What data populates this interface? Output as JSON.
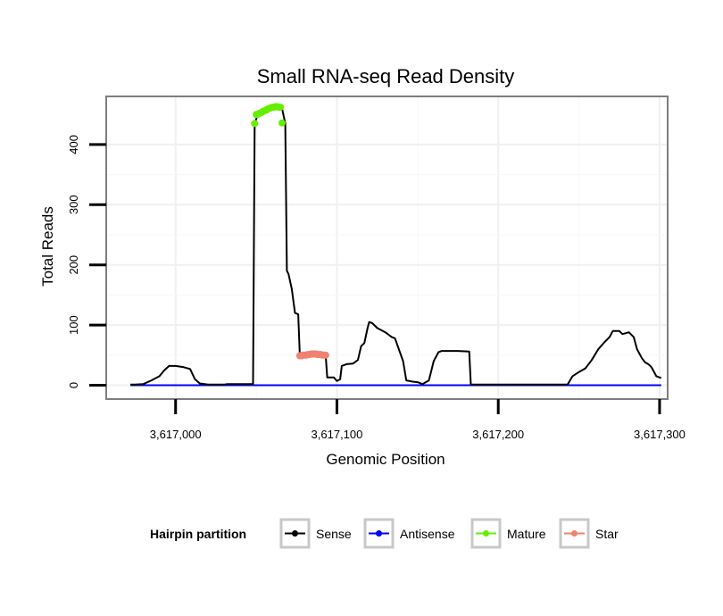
{
  "chart_data": {
    "type": "line",
    "title": "Small RNA-seq Read Density",
    "xlabel": "Genomic Position",
    "ylabel": "Total Reads",
    "xlim": [
      3616957,
      3617305
    ],
    "ylim": [
      -23,
      480
    ],
    "x_ticks": [
      3617000,
      3617100,
      3617200,
      3617300
    ],
    "x_tick_labels": [
      "3,617,000",
      "3,617,100",
      "3,617,200",
      "3,617,300"
    ],
    "y_ticks": [
      0,
      100,
      200,
      300,
      400
    ],
    "y_tick_labels": [
      "0",
      "100",
      "200",
      "300",
      "400"
    ],
    "grid": true,
    "legend": {
      "title": "Hairpin partition",
      "position": "bottom",
      "entries": [
        {
          "name": "Sense",
          "color": "#000000"
        },
        {
          "name": "Antisense",
          "color": "#0000ff"
        },
        {
          "name": "Mature",
          "color": "#66ee00"
        },
        {
          "name": "Star",
          "color": "#f08070"
        }
      ]
    },
    "series": [
      {
        "name": "Sense",
        "color": "#000000",
        "points": [
          [
            3616972,
            1
          ],
          [
            3616975,
            1
          ],
          [
            3616980,
            2
          ],
          [
            3616985,
            8
          ],
          [
            3616990,
            15
          ],
          [
            3616993,
            25
          ],
          [
            3616996,
            32
          ],
          [
            3617000,
            32
          ],
          [
            3617005,
            30
          ],
          [
            3617009,
            27
          ],
          [
            3617012,
            10
          ],
          [
            3617015,
            3
          ],
          [
            3617020,
            1
          ],
          [
            3617030,
            1
          ],
          [
            3617032,
            2
          ],
          [
            3617043,
            2
          ],
          [
            3617048,
            2
          ],
          [
            3617049,
            435
          ],
          [
            3617051,
            450
          ],
          [
            3617055,
            455
          ],
          [
            3617060,
            462
          ],
          [
            3617063,
            463
          ],
          [
            3617066,
            460
          ],
          [
            3617068,
            435
          ],
          [
            3617069,
            190
          ],
          [
            3617070,
            185
          ],
          [
            3617072,
            160
          ],
          [
            3617074,
            120
          ],
          [
            3617076,
            118
          ],
          [
            3617077,
            50
          ],
          [
            3617086,
            52
          ],
          [
            3617093,
            51
          ],
          [
            3617094,
            13
          ],
          [
            3617098,
            13
          ],
          [
            3617100,
            7
          ],
          [
            3617102,
            10
          ],
          [
            3617103,
            32
          ],
          [
            3617106,
            35
          ],
          [
            3617110,
            36
          ],
          [
            3617113,
            42
          ],
          [
            3617115,
            65
          ],
          [
            3617117,
            70
          ],
          [
            3617119,
            95
          ],
          [
            3617120,
            105
          ],
          [
            3617122,
            103
          ],
          [
            3617125,
            95
          ],
          [
            3617130,
            88
          ],
          [
            3617134,
            80
          ],
          [
            3617136,
            78
          ],
          [
            3617139,
            55
          ],
          [
            3617141,
            40
          ],
          [
            3617143,
            8
          ],
          [
            3617147,
            6
          ],
          [
            3617150,
            5
          ],
          [
            3617153,
            2
          ],
          [
            3617157,
            8
          ],
          [
            3617160,
            40
          ],
          [
            3617163,
            55
          ],
          [
            3617165,
            57
          ],
          [
            3617175,
            57
          ],
          [
            3617182,
            56
          ],
          [
            3617183,
            1
          ],
          [
            3617200,
            1
          ],
          [
            3617225,
            1
          ],
          [
            3617243,
            1
          ],
          [
            3617246,
            15
          ],
          [
            3617250,
            22
          ],
          [
            3617254,
            28
          ],
          [
            3617258,
            42
          ],
          [
            3617262,
            60
          ],
          [
            3617266,
            72
          ],
          [
            3617269,
            80
          ],
          [
            3617271,
            90
          ],
          [
            3617275,
            90
          ],
          [
            3617277,
            85
          ],
          [
            3617281,
            88
          ],
          [
            3617284,
            80
          ],
          [
            3617286,
            60
          ],
          [
            3617289,
            45
          ],
          [
            3617291,
            38
          ],
          [
            3617293,
            35
          ],
          [
            3617295,
            30
          ],
          [
            3617298,
            15
          ],
          [
            3617301,
            12
          ]
        ]
      },
      {
        "name": "Antisense",
        "color": "#0000ff",
        "points": [
          [
            3616972,
            0
          ],
          [
            3617301,
            0
          ]
        ]
      },
      {
        "name": "Mature",
        "color": "#66ee00",
        "points": [
          [
            3617049,
            435
          ],
          [
            3617050,
            450
          ],
          [
            3617051,
            450
          ],
          [
            3617052,
            452
          ],
          [
            3617053,
            453
          ],
          [
            3617054,
            455
          ],
          [
            3617055,
            456
          ],
          [
            3617056,
            457
          ],
          [
            3617057,
            459
          ],
          [
            3617058,
            460
          ],
          [
            3617059,
            461
          ],
          [
            3617060,
            462
          ],
          [
            3617061,
            462
          ],
          [
            3617062,
            463
          ],
          [
            3617063,
            463
          ],
          [
            3617064,
            462
          ],
          [
            3617065,
            462
          ],
          [
            3617066,
            436
          ]
        ]
      },
      {
        "name": "Star",
        "color": "#f08070",
        "points": [
          [
            3617077,
            49
          ],
          [
            3617078,
            49
          ],
          [
            3617079,
            50
          ],
          [
            3617080,
            50
          ],
          [
            3617081,
            50
          ],
          [
            3617082,
            51
          ],
          [
            3617083,
            51
          ],
          [
            3617084,
            52
          ],
          [
            3617085,
            52
          ],
          [
            3617086,
            52
          ],
          [
            3617087,
            52
          ],
          [
            3617088,
            51
          ],
          [
            3617089,
            51
          ],
          [
            3617090,
            51
          ],
          [
            3617091,
            50
          ],
          [
            3617092,
            50
          ],
          [
            3617093,
            50
          ]
        ]
      }
    ]
  }
}
